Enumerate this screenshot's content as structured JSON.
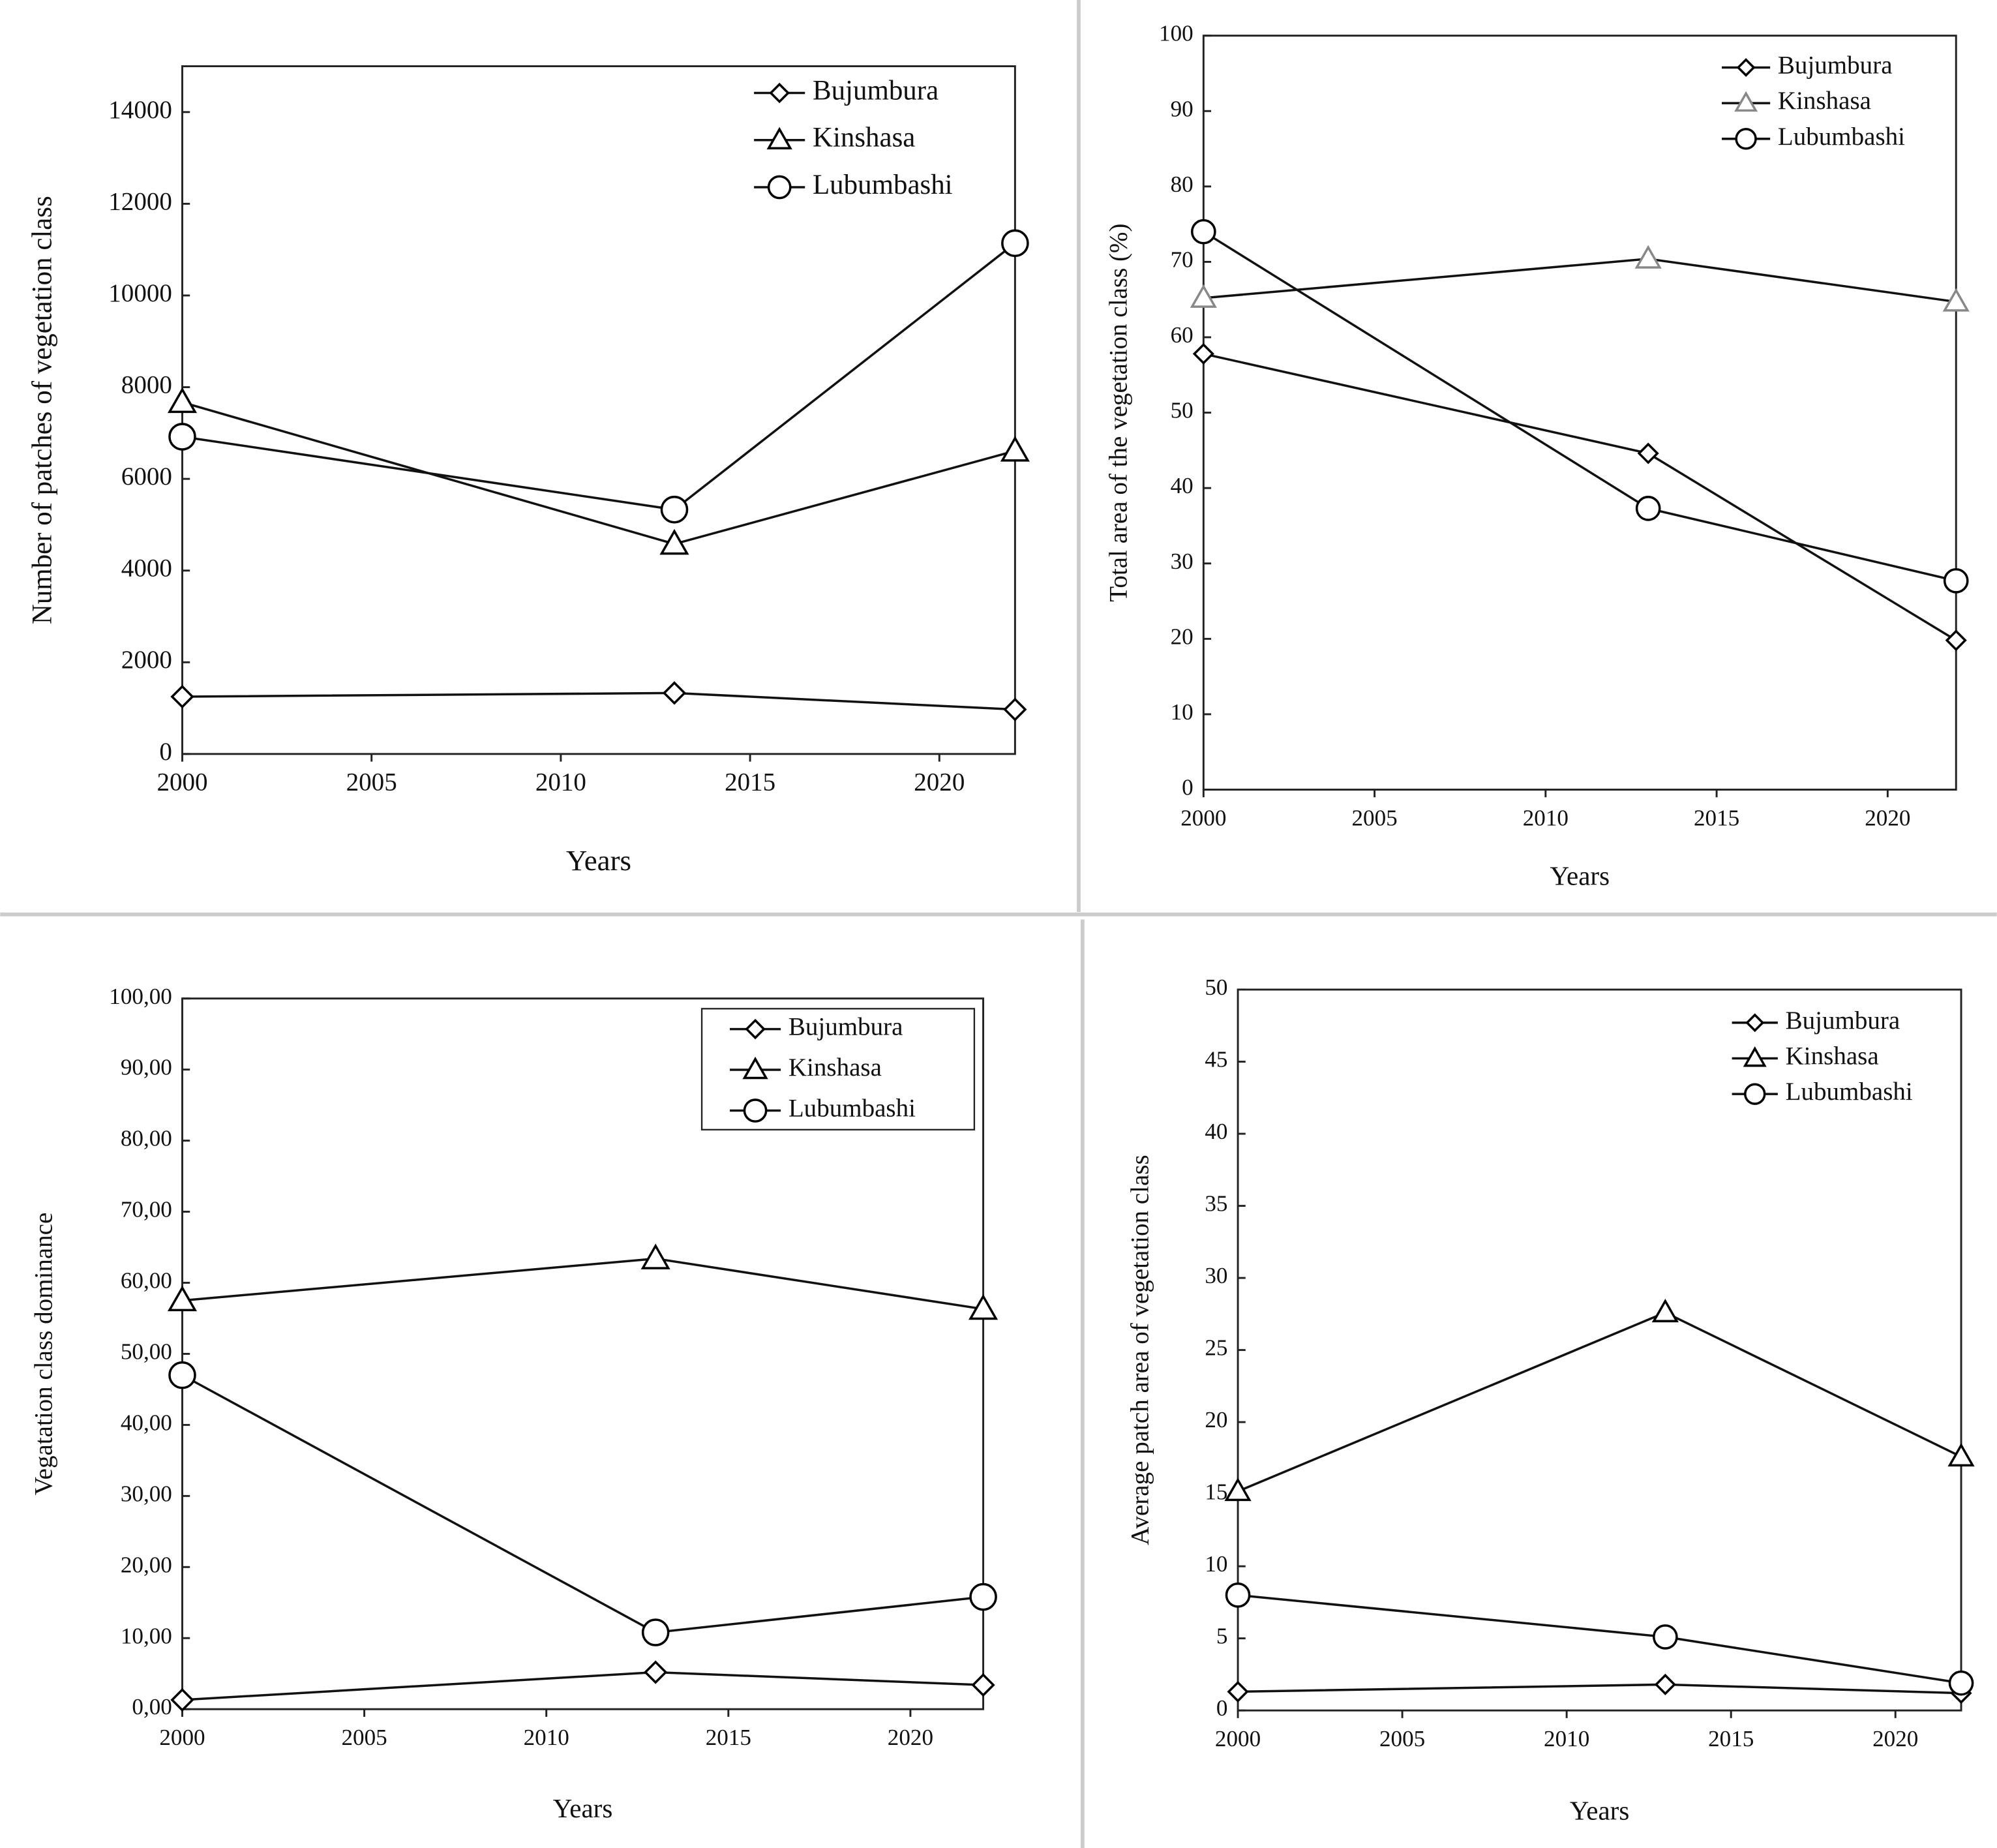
{
  "chart_data": [
    {
      "type": "line",
      "x": [
        2000,
        2013,
        2022
      ],
      "xlim": [
        2000,
        2022
      ],
      "xticks": [
        2000,
        2005,
        2010,
        2015,
        2020
      ],
      "ylim": [
        0,
        15000
      ],
      "yticks": [
        0,
        2000,
        4000,
        6000,
        8000,
        10000,
        12000,
        14000
      ],
      "xlabel": "Years",
      "ylabel": "Number of patches of vegetation class",
      "legend": "upper right",
      "legend_frame": false,
      "series": [
        {
          "name": "Bujumbura",
          "color": "#000000",
          "marker": "diamond",
          "values": [
            1250,
            1330,
            970
          ]
        },
        {
          "name": "Kinshasa",
          "color": "#000000",
          "marker": "triangle",
          "values": [
            7670,
            4580,
            6610
          ]
        },
        {
          "name": "Lubumbashi",
          "color": "#000000",
          "marker": "circle",
          "values": [
            6920,
            5330,
            11140
          ]
        }
      ]
    },
    {
      "type": "line",
      "x": [
        2000,
        2013,
        2022
      ],
      "xlim": [
        2000,
        2022
      ],
      "xticks": [
        2000,
        2005,
        2010,
        2015,
        2020
      ],
      "ylim": [
        0,
        100
      ],
      "yticks": [
        0,
        10,
        20,
        30,
        40,
        50,
        60,
        70,
        80,
        90,
        100
      ],
      "xlabel": "Years",
      "ylabel": "Total area of the vegetation class (%)",
      "legend": "upper right",
      "legend_frame": false,
      "series": [
        {
          "name": "Bujumbura",
          "color": "#000000",
          "marker": "diamond",
          "values": [
            57.8,
            44.6,
            19.8
          ]
        },
        {
          "name": "Kinshasa",
          "color": "#888888",
          "marker": "triangle",
          "values": [
            65.2,
            70.4,
            64.7
          ]
        },
        {
          "name": "Lubumbashi",
          "color": "#000000",
          "marker": "circle",
          "values": [
            74,
            37.3,
            27.7
          ]
        }
      ]
    },
    {
      "type": "line",
      "x": [
        2000,
        2013,
        2022
      ],
      "xlim": [
        2000,
        2022
      ],
      "xticks": [
        2000,
        2005,
        2010,
        2015,
        2020
      ],
      "ylim": [
        0,
        100
      ],
      "yticks": [
        {
          "value": 0,
          "label": "0,00"
        },
        {
          "value": 10,
          "label": "10,00"
        },
        {
          "value": 20,
          "label": "20,00"
        },
        {
          "value": 30,
          "label": "30,00"
        },
        {
          "value": 40,
          "label": "40,00"
        },
        {
          "value": 50,
          "label": "50,00"
        },
        {
          "value": 60,
          "label": "60,00"
        },
        {
          "value": 70,
          "label": "70,00"
        },
        {
          "value": 80,
          "label": "80,00"
        },
        {
          "value": 90,
          "label": "90,00"
        },
        {
          "value": 100,
          "label": "100,00"
        }
      ],
      "xlabel": "Years",
      "ylabel": "Vegatation class dominance",
      "legend": "upper right",
      "legend_frame": true,
      "series": [
        {
          "name": "Bujumbura",
          "color": "#000000",
          "marker": "diamond",
          "values": [
            1.3,
            5.2,
            3.4
          ]
        },
        {
          "name": "Kinshasa",
          "color": "#000000",
          "marker": "triangle",
          "values": [
            57.5,
            63.4,
            56.3
          ]
        },
        {
          "name": "Lubumbashi",
          "color": "#000000",
          "marker": "circle",
          "values": [
            47,
            10.8,
            15.8
          ]
        }
      ]
    },
    {
      "type": "line",
      "x": [
        2000,
        2013,
        2022
      ],
      "xlim": [
        2000,
        2022
      ],
      "xticks": [
        2000,
        2005,
        2010,
        2015,
        2020
      ],
      "ylim": [
        0,
        50
      ],
      "yticks": [
        0,
        5,
        10,
        15,
        20,
        25,
        30,
        35,
        40,
        45,
        50
      ],
      "xlabel": "Years",
      "ylabel": "Average patch area of vegetation class",
      "legend": "upper right",
      "legend_frame": false,
      "series": [
        {
          "name": "Bujumbura",
          "color": "#000000",
          "marker": "diamond",
          "values": [
            1.3,
            1.8,
            1.2
          ]
        },
        {
          "name": "Kinshasa",
          "color": "#000000",
          "marker": "triangle",
          "values": [
            15.2,
            27.6,
            17.6
          ]
        },
        {
          "name": "Lubumbashi",
          "color": "#000000",
          "marker": "circle",
          "values": [
            8,
            5.1,
            1.9
          ]
        }
      ]
    }
  ]
}
